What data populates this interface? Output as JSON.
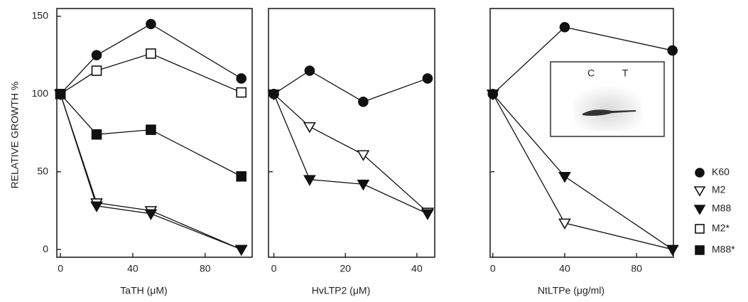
{
  "chart_data": [
    {
      "type": "line",
      "xlabel": "TaTH  (μM)",
      "ylabel": "RELATIVE GROWTH  %",
      "x": [
        0,
        20,
        50,
        100
      ],
      "xlim": [
        -2,
        106
      ],
      "xticks": [
        0,
        40,
        80
      ],
      "ylim": [
        -5,
        155
      ],
      "yticks": [
        0,
        50,
        100,
        150
      ],
      "show_ytick_labels": true,
      "series": [
        {
          "name": "K60",
          "marker": "circle-filled",
          "color": "#111",
          "values": [
            100,
            125,
            145,
            110
          ]
        },
        {
          "name": "M2",
          "marker": "tri-open",
          "color": "#111",
          "values": [
            100,
            30,
            25,
            0
          ]
        },
        {
          "name": "M88",
          "marker": "tri-filled",
          "color": "#111",
          "values": [
            100,
            28,
            23,
            0
          ]
        },
        {
          "name": "M2*",
          "marker": "square-open",
          "color": "#111",
          "values": [
            100,
            115,
            126,
            101
          ]
        },
        {
          "name": "M88*",
          "marker": "square-filled",
          "color": "#111",
          "values": [
            100,
            74,
            77,
            47
          ]
        }
      ]
    },
    {
      "type": "line",
      "xlabel": "HvLTP2  (μM)",
      "x": [
        0,
        10,
        25,
        43
      ],
      "xlim": [
        -1.5,
        45
      ],
      "xticks": [
        0,
        20,
        40
      ],
      "ylim": [
        -5,
        155
      ],
      "yticks": [
        50,
        100
      ],
      "show_ytick_labels": false,
      "series": [
        {
          "marker": "circle-filled",
          "color": "#111",
          "values": [
            100,
            115,
            95,
            110
          ]
        },
        {
          "marker": "tri-open",
          "color": "#111",
          "values": [
            100,
            79,
            61,
            24
          ]
        },
        {
          "marker": "tri-filled",
          "color": "#111",
          "values": [
            100,
            45,
            42,
            23
          ]
        }
      ]
    },
    {
      "type": "line",
      "xlabel": "NtLTPe  (μg/ml)",
      "x": [
        0,
        40,
        100
      ],
      "xlim": [
        -1.5,
        100.5
      ],
      "xticks": [
        0,
        40,
        80
      ],
      "ylim": [
        -5,
        155
      ],
      "yticks": [
        50,
        100
      ],
      "show_ytick_labels": false,
      "series": [
        {
          "marker": "circle-filled",
          "color": "#111",
          "values": [
            100,
            143,
            128
          ]
        },
        {
          "marker": "tri-open",
          "color": "#111",
          "values": [
            100,
            17,
            0
          ]
        },
        {
          "marker": "tri-filled",
          "color": "#111",
          "values": [
            100,
            47,
            0
          ]
        }
      ],
      "inset": {
        "labels": [
          "C",
          "T"
        ]
      }
    }
  ]
}
